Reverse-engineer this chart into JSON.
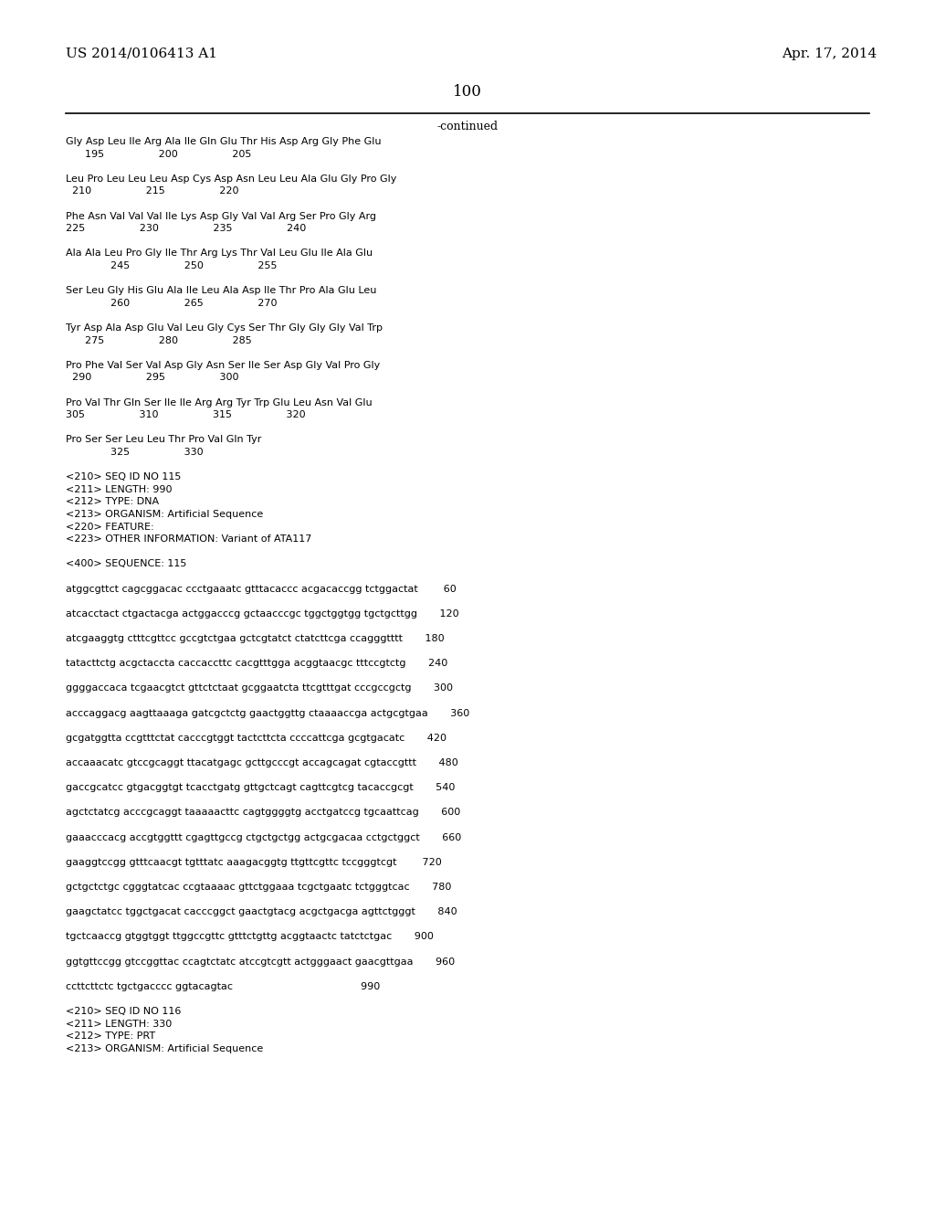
{
  "header_left": "US 2014/0106413 A1",
  "header_right": "Apr. 17, 2014",
  "page_number": "100",
  "continued_text": "-continued",
  "background_color": "#ffffff",
  "text_color": "#000000",
  "content_lines": [
    "Gly Asp Leu Ile Arg Ala Ile Gln Glu Thr His Asp Arg Gly Phe Glu",
    "      195                 200                 205",
    "",
    "Leu Pro Leu Leu Leu Asp Cys Asp Asn Leu Leu Ala Glu Gly Pro Gly",
    "  210                 215                 220",
    "",
    "Phe Asn Val Val Val Ile Lys Asp Gly Val Val Arg Ser Pro Gly Arg",
    "225                 230                 235                 240",
    "",
    "Ala Ala Leu Pro Gly Ile Thr Arg Lys Thr Val Leu Glu Ile Ala Glu",
    "              245                 250                 255",
    "",
    "Ser Leu Gly His Glu Ala Ile Leu Ala Asp Ile Thr Pro Ala Glu Leu",
    "              260                 265                 270",
    "",
    "Tyr Asp Ala Asp Glu Val Leu Gly Cys Ser Thr Gly Gly Gly Val Trp",
    "      275                 280                 285",
    "",
    "Pro Phe Val Ser Val Asp Gly Asn Ser Ile Ser Asp Gly Val Pro Gly",
    "  290                 295                 300",
    "",
    "Pro Val Thr Gln Ser Ile Ile Arg Arg Tyr Trp Glu Leu Asn Val Glu",
    "305                 310                 315                 320",
    "",
    "Pro Ser Ser Leu Leu Thr Pro Val Gln Tyr",
    "              325                 330",
    "",
    "<210> SEQ ID NO 115",
    "<211> LENGTH: 990",
    "<212> TYPE: DNA",
    "<213> ORGANISM: Artificial Sequence",
    "<220> FEATURE:",
    "<223> OTHER INFORMATION: Variant of ATA117",
    "",
    "<400> SEQUENCE: 115",
    "",
    "atggcgttct cagcggacac ccctgaaatc gtttacaccc acgacaccgg tctggactat        60",
    "",
    "atcacctact ctgactacga actggacccg gctaacccgc tggctggtgg tgctgcttgg       120",
    "",
    "atcgaaggtg ctttcgttcc gccgtctgaa gctcgtatct ctatcttcga ccagggtttt       180",
    "",
    "tatacttctg acgctaccta caccaccttc cacgtttgga acggtaacgc tttccgtctg       240",
    "",
    "ggggaccaca tcgaacgtct gttctctaat gcggaatcta ttcgtttgat cccgccgctg       300",
    "",
    "acccaggacg aagttaaaga gatcgctctg gaactggttg ctaaaaccga actgcgtgaa       360",
    "",
    "gcgatggtta ccgtttctat cacccgtggt tactcttcta ccccattcga gcgtgacatc       420",
    "",
    "accaaacatc gtccgcaggt ttacatgagc gcttgcccgt accagcagat cgtaccgttt       480",
    "",
    "gaccgcatcc gtgacggtgt tcacctgatg gttgctcagt cagttcgtcg tacaccgcgt       540",
    "",
    "agctctatcg acccgcaggt taaaaacttc cagtggggtg acctgatccg tgcaattcag       600",
    "",
    "gaaacccacg accgtggttt cgagttgccg ctgctgctgg actgcgacaa cctgctggct       660",
    "",
    "gaaggtccgg gtttcaacgt tgtttatc aaagacggtg ttgttcgttc tccgggtcgt        720",
    "",
    "gctgctctgc cgggtatcac ccgtaaaac gttctggaaa tcgctgaatc tctgggtcac       780",
    "",
    "gaagctatcc tggctgacat cacccggct gaactgtacg acgctgacga agttctgggt       840",
    "",
    "tgctcaaccg gtggtggt ttggccgttc gtttctgttg acggtaactc tatctctgac       900",
    "",
    "ggtgttccgg gtccggttac ccagtctatc atccgtcgtt actgggaact gaacgttgaa       960",
    "",
    "ccttcttctc tgctgacccc ggtacagtac                                        990",
    "",
    "<210> SEQ ID NO 116",
    "<211> LENGTH: 330",
    "<212> TYPE: PRT",
    "<213> ORGANISM: Artificial Sequence"
  ]
}
